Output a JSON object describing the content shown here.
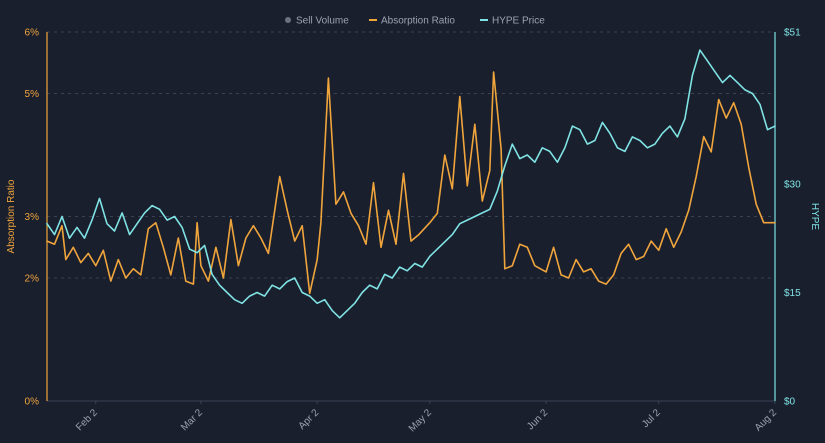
{
  "chart_data": {
    "type": "line",
    "background": "#1a1f2e",
    "grid": {
      "horizontal": true,
      "style": "dashed",
      "color": "#3a4254"
    },
    "legend": {
      "position": "top-center",
      "items": [
        {
          "label": "Sell Volume",
          "color": "#6b7280"
        },
        {
          "label": "Absorption Ratio",
          "color": "#f0a53c"
        },
        {
          "label": "HYPE Price",
          "color": "#7fe3e4"
        }
      ]
    },
    "x_axis": {
      "type": "date",
      "start": "2025-01-20",
      "end": "2025-08-02",
      "ticks": [
        {
          "date": "2025-02-02",
          "label": "Feb 2"
        },
        {
          "date": "2025-03-02",
          "label": "Mar 2"
        },
        {
          "date": "2025-04-02",
          "label": "Apr 2"
        },
        {
          "date": "2025-05-02",
          "label": "May 2"
        },
        {
          "date": "2025-06-02",
          "label": "Jun 2"
        },
        {
          "date": "2025-07-02",
          "label": "Jul 2"
        },
        {
          "date": "2025-08-02",
          "label": "Aug 2"
        }
      ]
    },
    "y_left": {
      "label": "Absorption Ratio",
      "color": "#f0a53c",
      "ylim": [
        0,
        6
      ],
      "ticks": [
        {
          "value": 0,
          "label": "0%"
        },
        {
          "value": 2,
          "label": "2%"
        },
        {
          "value": 3,
          "label": "3%"
        },
        {
          "value": 5,
          "label": "5%"
        },
        {
          "value": 6,
          "label": "6%"
        }
      ]
    },
    "y_right": {
      "label": "HYPE",
      "color": "#7fe3e4",
      "ylim": [
        0,
        51
      ],
      "ticks": [
        {
          "value": 0,
          "label": "$0"
        },
        {
          "value": 15,
          "label": "$15"
        },
        {
          "value": 30,
          "label": "$30"
        },
        {
          "value": 51,
          "label": "$51"
        }
      ]
    },
    "series": [
      {
        "name": "Absorption Ratio",
        "axis": "left",
        "color": "#f0a53c",
        "points": [
          [
            "2025-01-20",
            2.6
          ],
          [
            "2025-01-22",
            2.55
          ],
          [
            "2025-01-24",
            2.85
          ],
          [
            "2025-01-25",
            2.3
          ],
          [
            "2025-01-27",
            2.5
          ],
          [
            "2025-01-29",
            2.25
          ],
          [
            "2025-01-31",
            2.4
          ],
          [
            "2025-02-02",
            2.2
          ],
          [
            "2025-02-04",
            2.45
          ],
          [
            "2025-02-06",
            1.95
          ],
          [
            "2025-02-08",
            2.3
          ],
          [
            "2025-02-10",
            2.0
          ],
          [
            "2025-02-12",
            2.15
          ],
          [
            "2025-02-14",
            2.05
          ],
          [
            "2025-02-16",
            2.8
          ],
          [
            "2025-02-18",
            2.9
          ],
          [
            "2025-02-20",
            2.5
          ],
          [
            "2025-02-22",
            2.05
          ],
          [
            "2025-02-24",
            2.65
          ],
          [
            "2025-02-26",
            1.95
          ],
          [
            "2025-02-28",
            1.9
          ],
          [
            "2025-03-01",
            2.9
          ],
          [
            "2025-03-02",
            2.2
          ],
          [
            "2025-03-04",
            1.95
          ],
          [
            "2025-03-06",
            2.5
          ],
          [
            "2025-03-08",
            2.0
          ],
          [
            "2025-03-10",
            2.95
          ],
          [
            "2025-03-12",
            2.2
          ],
          [
            "2025-03-14",
            2.65
          ],
          [
            "2025-03-16",
            2.85
          ],
          [
            "2025-03-18",
            2.65
          ],
          [
            "2025-03-20",
            2.4
          ],
          [
            "2025-03-23",
            3.65
          ],
          [
            "2025-03-25",
            3.1
          ],
          [
            "2025-03-27",
            2.6
          ],
          [
            "2025-03-29",
            2.85
          ],
          [
            "2025-03-31",
            1.75
          ],
          [
            "2025-04-02",
            2.3
          ],
          [
            "2025-04-03",
            2.9
          ],
          [
            "2025-04-05",
            5.25
          ],
          [
            "2025-04-07",
            3.2
          ],
          [
            "2025-04-09",
            3.4
          ],
          [
            "2025-04-11",
            3.05
          ],
          [
            "2025-04-13",
            2.85
          ],
          [
            "2025-04-15",
            2.55
          ],
          [
            "2025-04-17",
            3.55
          ],
          [
            "2025-04-19",
            2.5
          ],
          [
            "2025-04-21",
            3.1
          ],
          [
            "2025-04-23",
            2.55
          ],
          [
            "2025-04-25",
            3.7
          ],
          [
            "2025-04-27",
            2.6
          ],
          [
            "2025-04-29",
            2.7
          ],
          [
            "2025-05-02",
            2.9
          ],
          [
            "2025-05-04",
            3.05
          ],
          [
            "2025-05-06",
            4.0
          ],
          [
            "2025-05-08",
            3.45
          ],
          [
            "2025-05-10",
            4.95
          ],
          [
            "2025-05-12",
            3.5
          ],
          [
            "2025-05-14",
            4.5
          ],
          [
            "2025-05-16",
            3.25
          ],
          [
            "2025-05-18",
            3.75
          ],
          [
            "2025-05-19",
            5.35
          ],
          [
            "2025-05-21",
            4.1
          ],
          [
            "2025-05-22",
            2.15
          ],
          [
            "2025-05-24",
            2.2
          ],
          [
            "2025-05-26",
            2.55
          ],
          [
            "2025-05-28",
            2.5
          ],
          [
            "2025-05-30",
            2.2
          ],
          [
            "2025-06-02",
            2.1
          ],
          [
            "2025-06-04",
            2.5
          ],
          [
            "2025-06-06",
            2.05
          ],
          [
            "2025-06-08",
            2.0
          ],
          [
            "2025-06-10",
            2.3
          ],
          [
            "2025-06-12",
            2.1
          ],
          [
            "2025-06-14",
            2.15
          ],
          [
            "2025-06-16",
            1.95
          ],
          [
            "2025-06-18",
            1.9
          ],
          [
            "2025-06-20",
            2.05
          ],
          [
            "2025-06-22",
            2.4
          ],
          [
            "2025-06-24",
            2.55
          ],
          [
            "2025-06-26",
            2.3
          ],
          [
            "2025-06-28",
            2.35
          ],
          [
            "2025-06-30",
            2.6
          ],
          [
            "2025-07-02",
            2.45
          ],
          [
            "2025-07-04",
            2.8
          ],
          [
            "2025-07-06",
            2.5
          ],
          [
            "2025-07-08",
            2.75
          ],
          [
            "2025-07-10",
            3.1
          ],
          [
            "2025-07-12",
            3.65
          ],
          [
            "2025-07-14",
            4.3
          ],
          [
            "2025-07-16",
            4.05
          ],
          [
            "2025-07-18",
            4.9
          ],
          [
            "2025-07-20",
            4.6
          ],
          [
            "2025-07-22",
            4.85
          ],
          [
            "2025-07-24",
            4.5
          ],
          [
            "2025-07-26",
            3.8
          ],
          [
            "2025-07-28",
            3.2
          ],
          [
            "2025-07-30",
            2.9
          ],
          [
            "2025-08-02",
            2.9
          ]
        ]
      },
      {
        "name": "HYPE Price",
        "axis": "right",
        "color": "#7fe3e4",
        "points": [
          [
            "2025-01-20",
            24.5
          ],
          [
            "2025-01-22",
            23.0
          ],
          [
            "2025-01-24",
            25.5
          ],
          [
            "2025-01-26",
            22.5
          ],
          [
            "2025-01-28",
            24.0
          ],
          [
            "2025-01-30",
            22.5
          ],
          [
            "2025-02-01",
            25.0
          ],
          [
            "2025-02-03",
            28.0
          ],
          [
            "2025-02-05",
            24.5
          ],
          [
            "2025-02-07",
            23.5
          ],
          [
            "2025-02-09",
            26.0
          ],
          [
            "2025-02-11",
            23.0
          ],
          [
            "2025-02-13",
            24.5
          ],
          [
            "2025-02-15",
            26.0
          ],
          [
            "2025-02-17",
            27.0
          ],
          [
            "2025-02-19",
            26.5
          ],
          [
            "2025-02-21",
            25.0
          ],
          [
            "2025-02-23",
            25.5
          ],
          [
            "2025-02-25",
            24.0
          ],
          [
            "2025-02-27",
            21.0
          ],
          [
            "2025-03-01",
            20.5
          ],
          [
            "2025-03-03",
            21.5
          ],
          [
            "2025-03-05",
            17.5
          ],
          [
            "2025-03-07",
            16.0
          ],
          [
            "2025-03-09",
            15.0
          ],
          [
            "2025-03-11",
            14.0
          ],
          [
            "2025-03-13",
            13.5
          ],
          [
            "2025-03-15",
            14.5
          ],
          [
            "2025-03-17",
            15.0
          ],
          [
            "2025-03-19",
            14.5
          ],
          [
            "2025-03-21",
            16.0
          ],
          [
            "2025-03-23",
            15.5
          ],
          [
            "2025-03-25",
            16.5
          ],
          [
            "2025-03-27",
            17.0
          ],
          [
            "2025-03-29",
            15.0
          ],
          [
            "2025-03-31",
            14.5
          ],
          [
            "2025-04-02",
            13.5
          ],
          [
            "2025-04-04",
            14.0
          ],
          [
            "2025-04-06",
            12.5
          ],
          [
            "2025-04-08",
            11.5
          ],
          [
            "2025-04-10",
            12.5
          ],
          [
            "2025-04-12",
            13.5
          ],
          [
            "2025-04-14",
            15.0
          ],
          [
            "2025-04-16",
            16.0
          ],
          [
            "2025-04-18",
            15.5
          ],
          [
            "2025-04-20",
            17.5
          ],
          [
            "2025-04-22",
            17.0
          ],
          [
            "2025-04-24",
            18.5
          ],
          [
            "2025-04-26",
            18.0
          ],
          [
            "2025-04-28",
            19.0
          ],
          [
            "2025-04-30",
            18.5
          ],
          [
            "2025-05-02",
            20.0
          ],
          [
            "2025-05-04",
            21.0
          ],
          [
            "2025-05-06",
            22.0
          ],
          [
            "2025-05-08",
            23.0
          ],
          [
            "2025-05-10",
            24.5
          ],
          [
            "2025-05-12",
            25.0
          ],
          [
            "2025-05-14",
            25.5
          ],
          [
            "2025-05-16",
            26.0
          ],
          [
            "2025-05-18",
            26.5
          ],
          [
            "2025-05-20",
            29.0
          ],
          [
            "2025-05-22",
            32.5
          ],
          [
            "2025-05-24",
            35.5
          ],
          [
            "2025-05-26",
            33.5
          ],
          [
            "2025-05-28",
            34.0
          ],
          [
            "2025-05-30",
            33.0
          ],
          [
            "2025-06-01",
            35.0
          ],
          [
            "2025-06-03",
            34.5
          ],
          [
            "2025-06-05",
            33.0
          ],
          [
            "2025-06-07",
            35.0
          ],
          [
            "2025-06-09",
            38.0
          ],
          [
            "2025-06-11",
            37.5
          ],
          [
            "2025-06-13",
            35.5
          ],
          [
            "2025-06-15",
            36.0
          ],
          [
            "2025-06-17",
            38.5
          ],
          [
            "2025-06-19",
            37.0
          ],
          [
            "2025-06-21",
            35.0
          ],
          [
            "2025-06-23",
            34.5
          ],
          [
            "2025-06-25",
            36.5
          ],
          [
            "2025-06-27",
            36.0
          ],
          [
            "2025-06-29",
            35.0
          ],
          [
            "2025-07-01",
            35.5
          ],
          [
            "2025-07-03",
            37.0
          ],
          [
            "2025-07-05",
            38.0
          ],
          [
            "2025-07-07",
            36.5
          ],
          [
            "2025-07-09",
            39.0
          ],
          [
            "2025-07-11",
            45.0
          ],
          [
            "2025-07-13",
            48.5
          ],
          [
            "2025-07-15",
            47.0
          ],
          [
            "2025-07-17",
            45.5
          ],
          [
            "2025-07-19",
            44.0
          ],
          [
            "2025-07-21",
            45.0
          ],
          [
            "2025-07-23",
            44.0
          ],
          [
            "2025-07-25",
            43.0
          ],
          [
            "2025-07-27",
            42.5
          ],
          [
            "2025-07-29",
            41.0
          ],
          [
            "2025-07-31",
            37.5
          ],
          [
            "2025-08-02",
            38.0
          ]
        ]
      }
    ]
  }
}
